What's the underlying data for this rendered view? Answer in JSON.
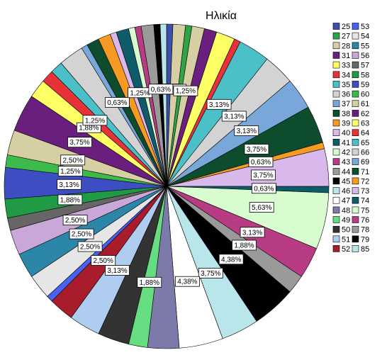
{
  "chart_data": {
    "type": "pie",
    "title": "Ηλικία",
    "slices": [
      {
        "label": "25",
        "value": 0.63,
        "color": "#3d4fa8",
        "shown": "0,63%"
      },
      {
        "label": "26",
        "value": 1.25,
        "color": "#d6cfa3",
        "shown": "1,25%"
      },
      {
        "label": "27",
        "value": 0.63,
        "color": "#2ea444",
        "shown": ""
      },
      {
        "label": "28",
        "value": 1.25,
        "color": "#d6cfa3",
        "shown": "1,25%"
      },
      {
        "label": "31",
        "value": 1.25,
        "color": "#6a1f7e",
        "shown": ""
      },
      {
        "label": "33",
        "value": 1.88,
        "color": "#ffff66",
        "shown": ""
      },
      {
        "label": "34",
        "value": 0.63,
        "color": "#e8323a",
        "shown": ""
      },
      {
        "label": "35",
        "value": 3.13,
        "color": "#4bc0c8",
        "shown": "3,13%"
      },
      {
        "label": "36",
        "value": 3.13,
        "color": "#d3d3d3",
        "shown": "3,13%"
      },
      {
        "label": "37",
        "value": 3.13,
        "color": "#7aa7da",
        "shown": "3,13%"
      },
      {
        "label": "38",
        "value": 3.75,
        "color": "#0d4d2d",
        "shown": "3,75%"
      },
      {
        "label": "39",
        "value": 0.63,
        "color": "#f59a23",
        "shown": "0,63%"
      },
      {
        "label": "40",
        "value": 3.75,
        "color": "#d9b8ec",
        "shown": "3,75%"
      },
      {
        "label": "41",
        "value": 0.63,
        "color": "#0e5c6a",
        "shown": "0,63%"
      },
      {
        "label": "42",
        "value": 5.63,
        "color": "#d8fbd0",
        "shown": "5,63%"
      },
      {
        "label": "43",
        "value": 3.13,
        "color": "#b83c84",
        "shown": "3,13%"
      },
      {
        "label": "44",
        "value": 1.88,
        "color": "#9a9a9a",
        "shown": "1,88%"
      },
      {
        "label": "45",
        "value": 4.38,
        "color": "#000000",
        "shown": "4,38%"
      },
      {
        "label": "46",
        "value": 3.75,
        "color": "#b9e6ea",
        "shown": "3,75%"
      },
      {
        "label": "47",
        "value": 4.38,
        "color": "#ffffff",
        "shown": "4,38%"
      },
      {
        "label": "48",
        "value": 3.13,
        "color": "#7b7aa8",
        "shown": ""
      },
      {
        "label": "49",
        "value": 1.88,
        "color": "#66dd80",
        "shown": "1,88%"
      },
      {
        "label": "50",
        "value": 3.13,
        "color": "#333333",
        "shown": ""
      },
      {
        "label": "51",
        "value": 3.13,
        "color": "#afcdf0",
        "shown": "3,13%"
      },
      {
        "label": "52",
        "value": 2.5,
        "color": "#a81c2c",
        "shown": "2,50%"
      },
      {
        "label": "53",
        "value": 0.63,
        "color": "#4a62f4",
        "shown": ""
      },
      {
        "label": "54",
        "value": 2.5,
        "color": "#e6e6e6",
        "shown": "2,50%"
      },
      {
        "label": "55",
        "value": 2.5,
        "color": "#2b86a8",
        "shown": "2,50%"
      },
      {
        "label": "56",
        "value": 2.5,
        "color": "#c9a8d9",
        "shown": "2,50%"
      },
      {
        "label": "57",
        "value": 1.25,
        "color": "#666666",
        "shown": ""
      },
      {
        "label": "58",
        "value": 1.88,
        "color": "#209a44",
        "shown": "1,88%"
      },
      {
        "label": "59",
        "value": 3.13,
        "color": "#3c4ec2",
        "shown": "3,13%"
      },
      {
        "label": "60",
        "value": 1.25,
        "color": "#3cbb4a",
        "shown": "1,25%"
      },
      {
        "label": "61",
        "value": 2.5,
        "color": "#d6cfa3",
        "shown": "2,50%"
      },
      {
        "label": "62",
        "value": 3.75,
        "color": "#6a1f7e",
        "shown": "3,75%"
      },
      {
        "label": "63",
        "value": 1.88,
        "color": "#ffff66",
        "shown": "1,88%"
      },
      {
        "label": "64",
        "value": 1.25,
        "color": "#e8323a",
        "shown": "1,25%"
      },
      {
        "label": "65",
        "value": 1.25,
        "color": "#4bc0c8",
        "shown": ""
      },
      {
        "label": "66",
        "value": 2.5,
        "color": "#d3d3d3",
        "shown": ""
      },
      {
        "label": "69",
        "value": 0.63,
        "color": "#7aa7da",
        "shown": "0,63%"
      },
      {
        "label": "71",
        "value": 1.25,
        "color": "#0d4d2d",
        "shown": ""
      },
      {
        "label": "72",
        "value": 1.25,
        "color": "#f59a23",
        "shown": ""
      },
      {
        "label": "73",
        "value": 0.63,
        "color": "#d9b8ec",
        "shown": ""
      },
      {
        "label": "74",
        "value": 1.25,
        "color": "#0e5c6a",
        "shown": "1,25%"
      },
      {
        "label": "75",
        "value": 0.63,
        "color": "#d8fbd0",
        "shown": ""
      },
      {
        "label": "76",
        "value": 0.63,
        "color": "#b83c84",
        "shown": ""
      },
      {
        "label": "78",
        "value": 1.25,
        "color": "#9a9a9a",
        "shown": ""
      },
      {
        "label": "79",
        "value": 0.63,
        "color": "#000000",
        "shown": "0,63%"
      },
      {
        "label": "85",
        "value": 0.63,
        "color": "#b9e6ea",
        "shown": ""
      }
    ],
    "legend_columns": [
      [
        {
          "label": "25",
          "color": "#3d4fa8"
        },
        {
          "label": "27",
          "color": "#2ea444"
        },
        {
          "label": "28",
          "color": "#d6cfa3"
        },
        {
          "label": "31",
          "color": "#6a1f7e"
        },
        {
          "label": "33",
          "color": "#ffff66"
        },
        {
          "label": "34",
          "color": "#e8323a"
        },
        {
          "label": "35",
          "color": "#4bc0c8"
        },
        {
          "label": "36",
          "color": "#d3d3d3"
        },
        {
          "label": "37",
          "color": "#7aa7da"
        },
        {
          "label": "38",
          "color": "#0d4d2d"
        },
        {
          "label": "39",
          "color": "#f59a23"
        },
        {
          "label": "40",
          "color": "#d9b8ec"
        },
        {
          "label": "41",
          "color": "#0e5c6a"
        },
        {
          "label": "42",
          "color": "#d8fbd0"
        },
        {
          "label": "43",
          "color": "#b83c84"
        },
        {
          "label": "44",
          "color": "#9a9a9a"
        },
        {
          "label": "45",
          "color": "#000000"
        },
        {
          "label": "46",
          "color": "#b9e6ea"
        },
        {
          "label": "47",
          "color": "#ffffff"
        },
        {
          "label": "48",
          "color": "#7b7aa8"
        },
        {
          "label": "49",
          "color": "#66dd80"
        },
        {
          "label": "50",
          "color": "#333333"
        },
        {
          "label": "51",
          "color": "#afcdf0"
        },
        {
          "label": "52",
          "color": "#a81c2c"
        }
      ],
      [
        {
          "label": "53",
          "color": "#4a62f4"
        },
        {
          "label": "54",
          "color": "#e6e6e6"
        },
        {
          "label": "55",
          "color": "#2b86a8"
        },
        {
          "label": "56",
          "color": "#c9a8d9"
        },
        {
          "label": "57",
          "color": "#666666"
        },
        {
          "label": "58",
          "color": "#209a44"
        },
        {
          "label": "59",
          "color": "#3c4ec2"
        },
        {
          "label": "60",
          "color": "#3cbb4a"
        },
        {
          "label": "61",
          "color": "#d6cfa3"
        },
        {
          "label": "62",
          "color": "#6a1f7e"
        },
        {
          "label": "63",
          "color": "#ffff66"
        },
        {
          "label": "64",
          "color": "#e8323a"
        },
        {
          "label": "65",
          "color": "#4bc0c8"
        },
        {
          "label": "66",
          "color": "#d3d3d3"
        },
        {
          "label": "69",
          "color": "#7aa7da"
        },
        {
          "label": "71",
          "color": "#0d4d2d"
        },
        {
          "label": "72",
          "color": "#f59a23"
        },
        {
          "label": "73",
          "color": "#d9b8ec"
        },
        {
          "label": "74",
          "color": "#0e5c6a"
        },
        {
          "label": "75",
          "color": "#d8fbd0"
        },
        {
          "label": "76",
          "color": "#b83c84"
        },
        {
          "label": "78",
          "color": "#9a9a9a"
        },
        {
          "label": "79",
          "color": "#000000"
        },
        {
          "label": "85",
          "color": "#b9e6ea"
        }
      ]
    ],
    "legend_placement": "right",
    "start_position": "top, clockwise"
  }
}
